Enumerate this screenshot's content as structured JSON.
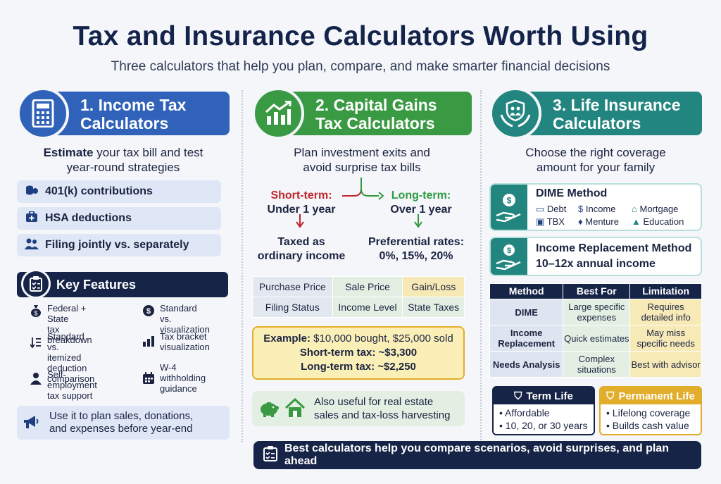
{
  "header": {
    "title": "Tax and Insurance Calculators Worth Using",
    "subtitle": "Three calculators that help you plan, compare, and make smarter financial decisions"
  },
  "colors": {
    "blue": "#2f62b8",
    "green": "#3a9a43",
    "teal": "#23857f",
    "navy": "#162447",
    "gold": "#e2ad2b"
  },
  "income": {
    "title_line1": "1. Income Tax",
    "title_line2": "Calculators",
    "icon": "calculator-icon",
    "lead_bold": "Estimate",
    "lead_rest": " your tax bill and test",
    "lead_line2": "year-round strategies",
    "items": [
      {
        "label": "401(k) contributions",
        "icon": "coins-icon"
      },
      {
        "label": "HSA deductions",
        "icon": "medical-bag-icon"
      },
      {
        "label": "Filing jointly vs. separately",
        "icon": "people-icon"
      }
    ],
    "features_title": "Key Features",
    "features": [
      {
        "l1": "Federal + State",
        "l2": "tax breakdown",
        "l3": "",
        "icon": "money-bag-icon"
      },
      {
        "l1": "Standard vs.",
        "l2": "visualization",
        "l3": "",
        "icon": "dollar-coin-icon"
      },
      {
        "l1": "Standard vs.",
        "l2": "itemized deduction",
        "l3": "comparison",
        "icon": "sort-list-icon"
      },
      {
        "l1": "Tax bracket",
        "l2": "visualization",
        "l3": "",
        "icon": "bar-chart-icon"
      },
      {
        "l1": "Self-employment",
        "l2": "tax support",
        "l3": "",
        "icon": "person-icon"
      },
      {
        "l1": "W-4",
        "l2": "withholding",
        "l3": "guidance",
        "icon": "calendar-icon"
      }
    ],
    "tip_line1": "Use it to plan sales, donations,",
    "tip_line2": "and expenses before year-end"
  },
  "capital": {
    "title_line1": "2. Capital Gains",
    "title_line2": "Tax Calculators",
    "icon": "growth-chart-icon",
    "lead_line1": "Plan investment exits and",
    "lead_line2": "avoid surprise tax bills",
    "short_label": "Short-term:",
    "short_sub": "Under 1 year",
    "long_label": "Long-term:",
    "long_sub": "Over 1 year",
    "short_result1": "Taxed as",
    "short_result2": "ordinary income",
    "long_result1": "Preferential rates:",
    "long_result2": "0%, 15%, 20%",
    "grid": [
      [
        "Purchase Price",
        "Sale Price",
        "Gain/Loss"
      ],
      [
        "Filing Status",
        "Income Level",
        "State Taxes"
      ]
    ],
    "example_label": "Example:",
    "example_rest": " $10,000 bought, $25,000 sold",
    "short_tax": "Short-term tax: ~$3,300",
    "long_tax": "Long-term tax: ~$2,250",
    "also_line1": "Also useful for real estate",
    "also_line2": "sales and tax-loss harvesting"
  },
  "life": {
    "title_line1": "3. Life Insurance",
    "title_line2": "Calculators",
    "icon": "family-shield-icon",
    "lead_line1": "Choose the right coverage",
    "lead_line2": "amount for your family",
    "dime_title": "DIME Method",
    "dime_items": [
      {
        "label": "Debt",
        "icon": "card-icon"
      },
      {
        "label": "Income",
        "icon": "dollar-icon"
      },
      {
        "label": "Mortgage",
        "icon": "house-icon"
      },
      {
        "label": "TBX",
        "icon": "cash-icon"
      },
      {
        "label": "Menture",
        "icon": "lock-icon"
      },
      {
        "label": "Education",
        "icon": "grad-cap-icon"
      }
    ],
    "irm_title": "Income Replacement Method",
    "irm_sub": "10–12x annual income",
    "table_headers": [
      "Method",
      "Best For",
      "Limitation"
    ],
    "table_rows": [
      [
        "DIME",
        "Large specific expenses",
        "Requires detailed info"
      ],
      [
        "Income Replacement",
        "Quick estimates",
        "May miss specific needs"
      ],
      [
        "Needs Analysis",
        "Complex situations",
        "Best with advisor"
      ]
    ],
    "term_title": "Term Life",
    "term_items": [
      "• Affordable",
      "• 10, 20, or 30 years"
    ],
    "perm_title": "Permanent Life",
    "perm_items": [
      "• Lifelong coverage",
      "• Builds cash value"
    ]
  },
  "footer": {
    "text": "Best calculators help you compare scenarios, avoid surprises, and plan ahead",
    "icon": "checklist-icon"
  }
}
